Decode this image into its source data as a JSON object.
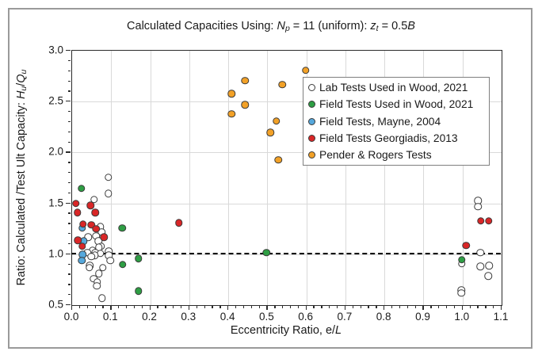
{
  "figure": {
    "background": "#ffffff",
    "border_color": "#9a9a9a"
  },
  "title": {
    "plain": "Calculated Capacities Using: Np = 11 (uniform): zt = 0.5B",
    "segments": [
      {
        "t": "Calculated Capacities Using: "
      },
      {
        "t": "N",
        "i": true
      },
      {
        "t": "p",
        "i": true,
        "sub": true
      },
      {
        "t": " = 11 (uniform): "
      },
      {
        "t": "z",
        "i": true
      },
      {
        "t": "t",
        "i": true,
        "sub": true
      },
      {
        "t": " = 0.5"
      },
      {
        "t": "B",
        "i": true
      }
    ]
  },
  "axes": {
    "x": {
      "label_plain": "Eccentricity Ratio, e/L",
      "label_segments": [
        {
          "t": "Eccentricity Ratio, e/"
        },
        {
          "t": "L",
          "i": true
        }
      ],
      "min": 0.0,
      "max": 1.1,
      "major_step": 0.1,
      "minor_step": 0.02,
      "tick_labels": [
        "0.0",
        "0.1",
        "0.2",
        "0.3",
        "0.4",
        "0.5",
        "0.6",
        "0.7",
        "0.8",
        "0.9",
        "1.0",
        "1.1"
      ]
    },
    "y": {
      "label_plain": "Ratio: Calculated /Test Ult Capacity: Hu/Qu",
      "label_segments": [
        {
          "t": "Ratio: Calculated /Test Ult Capacity: "
        },
        {
          "t": "H",
          "i": true
        },
        {
          "t": "u",
          "i": true,
          "sub": true
        },
        {
          "t": "/"
        },
        {
          "t": "Q",
          "i": true
        },
        {
          "t": "u",
          "i": true,
          "sub": true
        }
      ],
      "min": 0.5,
      "max": 3.0,
      "major_step": 0.5,
      "minor_step": 0.1,
      "tick_labels": [
        "0.5",
        "1.0",
        "1.5",
        "2.0",
        "2.5",
        "3.0"
      ]
    }
  },
  "reference_line": {
    "y": 1.0,
    "style": "dashed",
    "color": "#000000"
  },
  "style_colors": {
    "grid": "#d9d9d9",
    "axis": "#2b2b2b",
    "marker_edge": "#3a3a3a",
    "legend_border": "#7f7f7f"
  },
  "chart_data": {
    "type": "scatter",
    "title": "Calculated Capacities Using: Np = 11 (uniform): zt = 0.5B",
    "xlabel": "Eccentricity Ratio, e/L",
    "ylabel": "Ratio: Calculated /Test Ult Capacity: Hu/Qu",
    "xlim": [
      0.0,
      1.1
    ],
    "ylim": [
      0.5,
      3.0
    ],
    "grid": true,
    "legend_position": "upper-right-inside",
    "reference_line_y": 1.0,
    "series": [
      {
        "key": "lab-wood-2021",
        "name": "Lab Tests Used in Wood, 2021",
        "marker": "circle-open",
        "fill": "#ffffff",
        "points": [
          [
            0.095,
            1.75
          ],
          [
            0.095,
            1.59
          ],
          [
            0.058,
            1.53
          ],
          [
            0.075,
            1.26
          ],
          [
            0.078,
            1.21
          ],
          [
            0.063,
            1.17
          ],
          [
            0.043,
            1.16
          ],
          [
            0.07,
            1.12
          ],
          [
            0.077,
            1.07
          ],
          [
            0.071,
            1.06
          ],
          [
            0.054,
            1.03
          ],
          [
            0.096,
            1.02
          ],
          [
            0.041,
            1.01
          ],
          [
            0.061,
            1.01
          ],
          [
            0.075,
            1.0
          ],
          [
            0.096,
            0.98
          ],
          [
            0.06,
            0.98
          ],
          [
            0.051,
            0.97
          ],
          [
            0.1,
            0.93
          ],
          [
            0.047,
            0.88
          ],
          [
            0.046,
            0.86
          ],
          [
            0.081,
            0.86
          ],
          [
            0.071,
            0.8
          ],
          [
            0.057,
            0.75
          ],
          [
            0.066,
            0.72
          ],
          [
            0.065,
            0.68
          ],
          [
            0.079,
            0.56
          ],
          [
            1.042,
            1.52
          ],
          [
            1.042,
            1.46
          ],
          [
            1.048,
            1.01
          ],
          [
            1.0,
            0.9
          ],
          [
            1.048,
            0.87
          ],
          [
            1.07,
            0.88
          ],
          [
            1.068,
            0.78
          ],
          [
            0.999,
            0.64
          ],
          [
            0.999,
            0.61
          ]
        ]
      },
      {
        "key": "field-wood-2021",
        "name": "Field Tests Used in Wood, 2021",
        "marker": "circle-filled",
        "fill": "#2e9e44",
        "points": [
          [
            0.026,
            1.64
          ],
          [
            0.13,
            1.25
          ],
          [
            0.131,
            0.89
          ],
          [
            0.172,
            0.95
          ],
          [
            0.172,
            0.63
          ],
          [
            0.5,
            1.01
          ],
          [
            1.0,
            0.94
          ]
        ]
      },
      {
        "key": "field-mayne-2004",
        "name": "Field Tests, Mayne, 2004",
        "marker": "circle-filled",
        "fill": "#56a8dc",
        "points": [
          [
            0.028,
            1.25
          ],
          [
            0.032,
            1.12
          ],
          [
            0.029,
            0.99
          ],
          [
            0.027,
            0.93
          ]
        ]
      },
      {
        "key": "field-georgiadis-2013",
        "name": "Field Tests Georgiadis, 2013",
        "marker": "circle-filled",
        "fill": "#d92627",
        "points": [
          [
            0.012,
            1.49
          ],
          [
            0.049,
            1.47
          ],
          [
            0.016,
            1.4
          ],
          [
            0.061,
            1.4
          ],
          [
            0.03,
            1.29
          ],
          [
            0.051,
            1.28
          ],
          [
            0.063,
            1.24
          ],
          [
            0.084,
            1.16
          ],
          [
            0.017,
            1.13
          ],
          [
            0.028,
            1.07
          ],
          [
            0.276,
            1.3
          ],
          [
            1.011,
            1.08
          ],
          [
            1.049,
            1.32
          ],
          [
            1.069,
            1.32
          ]
        ]
      },
      {
        "key": "pender-rogers",
        "name": "Pender & Rogers Tests",
        "marker": "circle-filled",
        "fill": "#f2a127",
        "points": [
          [
            0.41,
            2.57
          ],
          [
            0.41,
            2.37
          ],
          [
            0.445,
            2.7
          ],
          [
            0.445,
            2.46
          ],
          [
            0.51,
            2.19
          ],
          [
            0.525,
            2.3
          ],
          [
            0.53,
            1.92
          ],
          [
            0.54,
            2.66
          ],
          [
            0.6,
            2.8
          ]
        ]
      }
    ]
  }
}
